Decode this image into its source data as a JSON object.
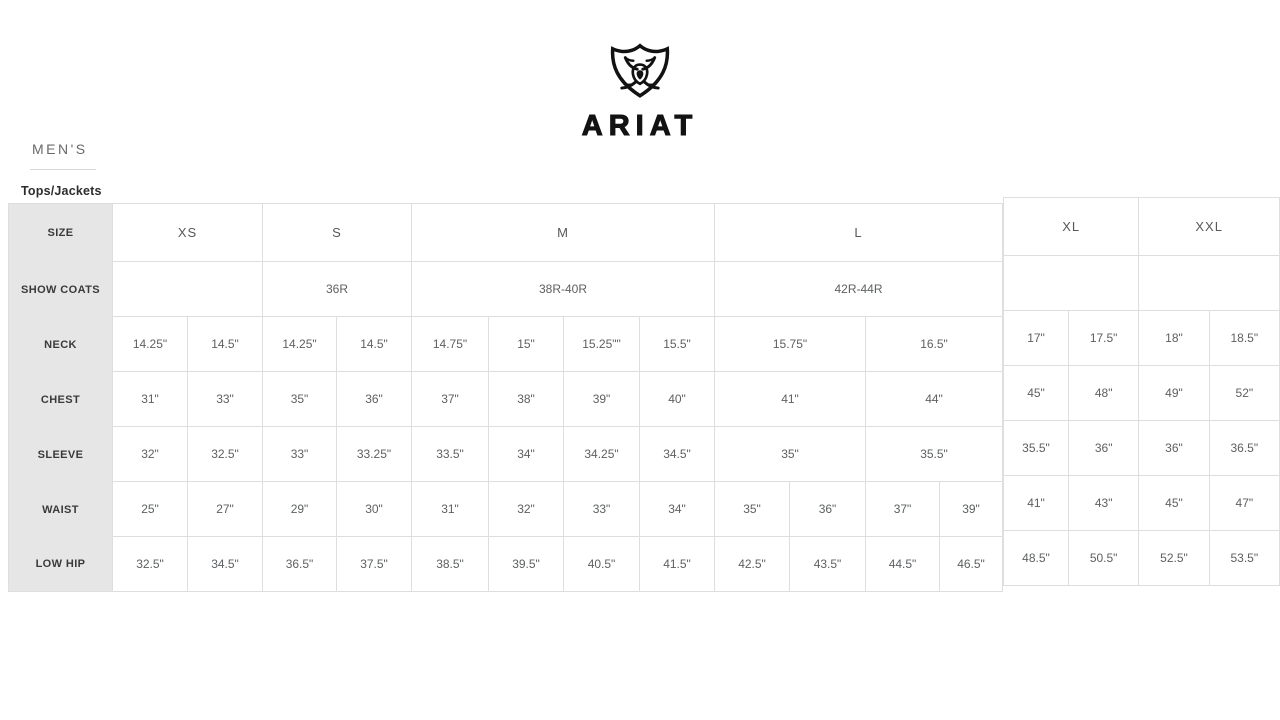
{
  "brand": {
    "name": "ARIAT",
    "logo_icon": "ariat-shield-icon"
  },
  "page": {
    "section_title": "MEN'S",
    "subsection_title": "Tops/Jackets"
  },
  "colors": {
    "label_bg": "#e7e6e6",
    "border": "#dedede",
    "brand_text": "#121212"
  },
  "size_chart": {
    "sizes": [
      "XS",
      "S",
      "M",
      "L",
      "XL",
      "XXL"
    ],
    "main_table": {
      "rows": [
        {
          "label": "SIZE",
          "cells": [
            [
              "XS",
              2
            ],
            [
              "S",
              2
            ],
            [
              "M",
              4
            ],
            [
              "L",
              4
            ]
          ]
        },
        {
          "label": "SHOW COATS",
          "cells": [
            [
              "",
              2
            ],
            [
              "36R",
              2
            ],
            [
              "38R-40R",
              4
            ],
            [
              "42R-44R",
              4
            ]
          ]
        },
        {
          "label": "NECK",
          "cells": [
            [
              "14.25\"",
              1
            ],
            [
              "14.5\"",
              1
            ],
            [
              "14.25\"",
              1
            ],
            [
              "14.5\"",
              1
            ],
            [
              "14.75\"",
              1
            ],
            [
              "15\"",
              1
            ],
            [
              "15.25\"\"",
              1
            ],
            [
              "15.5\"",
              1
            ],
            [
              "15.75\"",
              2
            ],
            [
              "16.5\"",
              2
            ]
          ]
        },
        {
          "label": "CHEST",
          "cells": [
            [
              "31\"",
              1
            ],
            [
              "33\"",
              1
            ],
            [
              "35\"",
              1
            ],
            [
              "36\"",
              1
            ],
            [
              "37\"",
              1
            ],
            [
              "38\"",
              1
            ],
            [
              "39\"",
              1
            ],
            [
              "40\"",
              1
            ],
            [
              "41\"",
              2
            ],
            [
              "44\"",
              2
            ]
          ]
        },
        {
          "label": "SLEEVE",
          "cells": [
            [
              "32\"",
              1
            ],
            [
              "32.5\"",
              1
            ],
            [
              "33\"",
              1
            ],
            [
              "33.25\"",
              1
            ],
            [
              "33.5\"",
              1
            ],
            [
              "34\"",
              1
            ],
            [
              "34.25\"",
              1
            ],
            [
              "34.5\"",
              1
            ],
            [
              "35\"",
              2
            ],
            [
              "35.5\"",
              2
            ]
          ]
        },
        {
          "label": "WAIST",
          "cells": [
            [
              "25\"",
              1
            ],
            [
              "27\"",
              1
            ],
            [
              "29\"",
              1
            ],
            [
              "30\"",
              1
            ],
            [
              "31\"",
              1
            ],
            [
              "32\"",
              1
            ],
            [
              "33\"",
              1
            ],
            [
              "34\"",
              1
            ],
            [
              "35\"",
              1
            ],
            [
              "36\"",
              1
            ],
            [
              "37\"",
              1
            ],
            [
              "39\"",
              1
            ]
          ]
        },
        {
          "label": "LOW HIP",
          "cells": [
            [
              "32.5\"",
              1
            ],
            [
              "34.5\"",
              1
            ],
            [
              "36.5\"",
              1
            ],
            [
              "37.5\"",
              1
            ],
            [
              "38.5\"",
              1
            ],
            [
              "39.5\"",
              1
            ],
            [
              "40.5\"",
              1
            ],
            [
              "41.5\"",
              1
            ],
            [
              "42.5\"",
              1
            ],
            [
              "43.5\"",
              1
            ],
            [
              "44.5\"",
              1
            ],
            [
              "46.5\"",
              1
            ]
          ]
        }
      ]
    },
    "right_table": {
      "rows": [
        {
          "cells": [
            [
              "XL",
              2
            ],
            [
              "XXL",
              2
            ]
          ]
        },
        {
          "cells": [
            [
              "",
              2
            ],
            [
              "",
              2
            ]
          ]
        },
        {
          "cells": [
            [
              "17\"",
              1
            ],
            [
              "17.5\"",
              1
            ],
            [
              "18\"",
              1
            ],
            [
              "18.5\"",
              1
            ]
          ]
        },
        {
          "cells": [
            [
              "45\"",
              1
            ],
            [
              "48\"",
              1
            ],
            [
              "49\"",
              1
            ],
            [
              "52\"",
              1
            ]
          ]
        },
        {
          "cells": [
            [
              "35.5\"",
              1
            ],
            [
              "36\"",
              1
            ],
            [
              "36\"",
              1
            ],
            [
              "36.5\"",
              1
            ]
          ]
        },
        {
          "cells": [
            [
              "41\"",
              1
            ],
            [
              "43\"",
              1
            ],
            [
              "45\"",
              1
            ],
            [
              "47\"",
              1
            ]
          ]
        },
        {
          "cells": [
            [
              "48.5\"",
              1
            ],
            [
              "50.5\"",
              1
            ],
            [
              "52.5\"",
              1
            ],
            [
              "53.5\"",
              1
            ]
          ]
        }
      ]
    }
  }
}
